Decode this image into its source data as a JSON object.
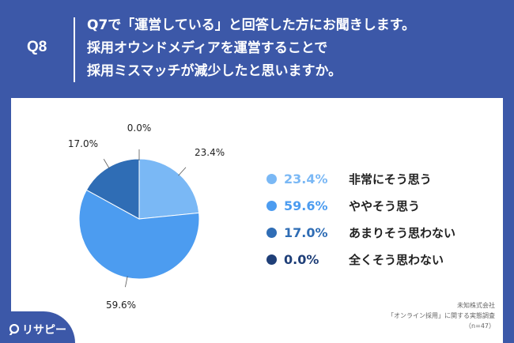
{
  "header": {
    "qnum": "Q8",
    "title_lines": [
      "Q7で「運営している」と回答した方にお聞きします。",
      "採用オウンドメディアを運営することで",
      "採用ミスマッチが減少したと思いますか。"
    ]
  },
  "chart_data": {
    "type": "pie",
    "title": "",
    "slices": [
      {
        "label": "非常にそう思う",
        "value": 23.4,
        "display": "23.4%",
        "color": "#7ab8f5"
      },
      {
        "label": "ややそう思う",
        "value": 59.6,
        "display": "59.6%",
        "color": "#4c9cf0"
      },
      {
        "label": "あまりそう思わない",
        "value": 17.0,
        "display": "17.0%",
        "color": "#2f6db5"
      },
      {
        "label": "全くそう思わない",
        "value": 0.0,
        "display": "0.0%",
        "color": "#1f3f78"
      }
    ],
    "start_angle_deg": 0,
    "direction": "clockwise",
    "legend_position": "right"
  },
  "source": {
    "line1": "未知株式会社",
    "line2": "「オンライン採用」に関する実態調査",
    "line3": "（n=47）"
  },
  "logo": {
    "text": "リサピー",
    "icon": "pin-logo-icon",
    "mark_color": "#ffffff"
  }
}
